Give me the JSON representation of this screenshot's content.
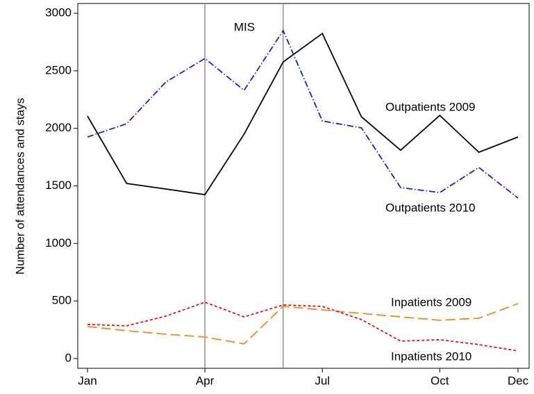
{
  "chart_data": {
    "type": "line",
    "ylabel": "Number of attendances and stays",
    "categories": [
      "Jan",
      null,
      null,
      "Apr",
      null,
      null,
      "Jul",
      null,
      null,
      "Oct",
      null,
      "Dec"
    ],
    "series": [
      {
        "name": "Outpatients 2009",
        "color": "#000000",
        "dash": "solid",
        "values": [
          2106,
          1521,
          1473,
          1424,
          1949,
          2577,
          2824,
          2100,
          1810,
          2112,
          1792,
          1925
        ]
      },
      {
        "name": "Outpatients 2010",
        "color": "#1a1adb",
        "dash": "dashdot",
        "values": [
          1925,
          2040,
          2402,
          2607,
          2330,
          2849,
          2064,
          2004,
          1485,
          1442,
          1660,
          1394
        ]
      },
      {
        "name": "Inpatients 2009",
        "color": "#f08a1c",
        "dash": "longdash",
        "values": [
          278,
          241,
          211,
          187,
          127,
          453,
          422,
          392,
          362,
          332,
          350,
          477
        ]
      },
      {
        "name": "Inpatients 2010",
        "color": "#e8101c",
        "dash": "shortdash",
        "values": [
          296,
          284,
          368,
          489,
          362,
          465,
          453,
          338,
          151,
          163,
          121,
          66
        ]
      }
    ],
    "annotation": "MIS",
    "vlines": [
      3,
      5
    ],
    "ylim": [
      -85,
      3085
    ],
    "yticks": [
      0,
      500,
      1000,
      1500,
      2000,
      2500,
      3000
    ],
    "grid": false
  }
}
